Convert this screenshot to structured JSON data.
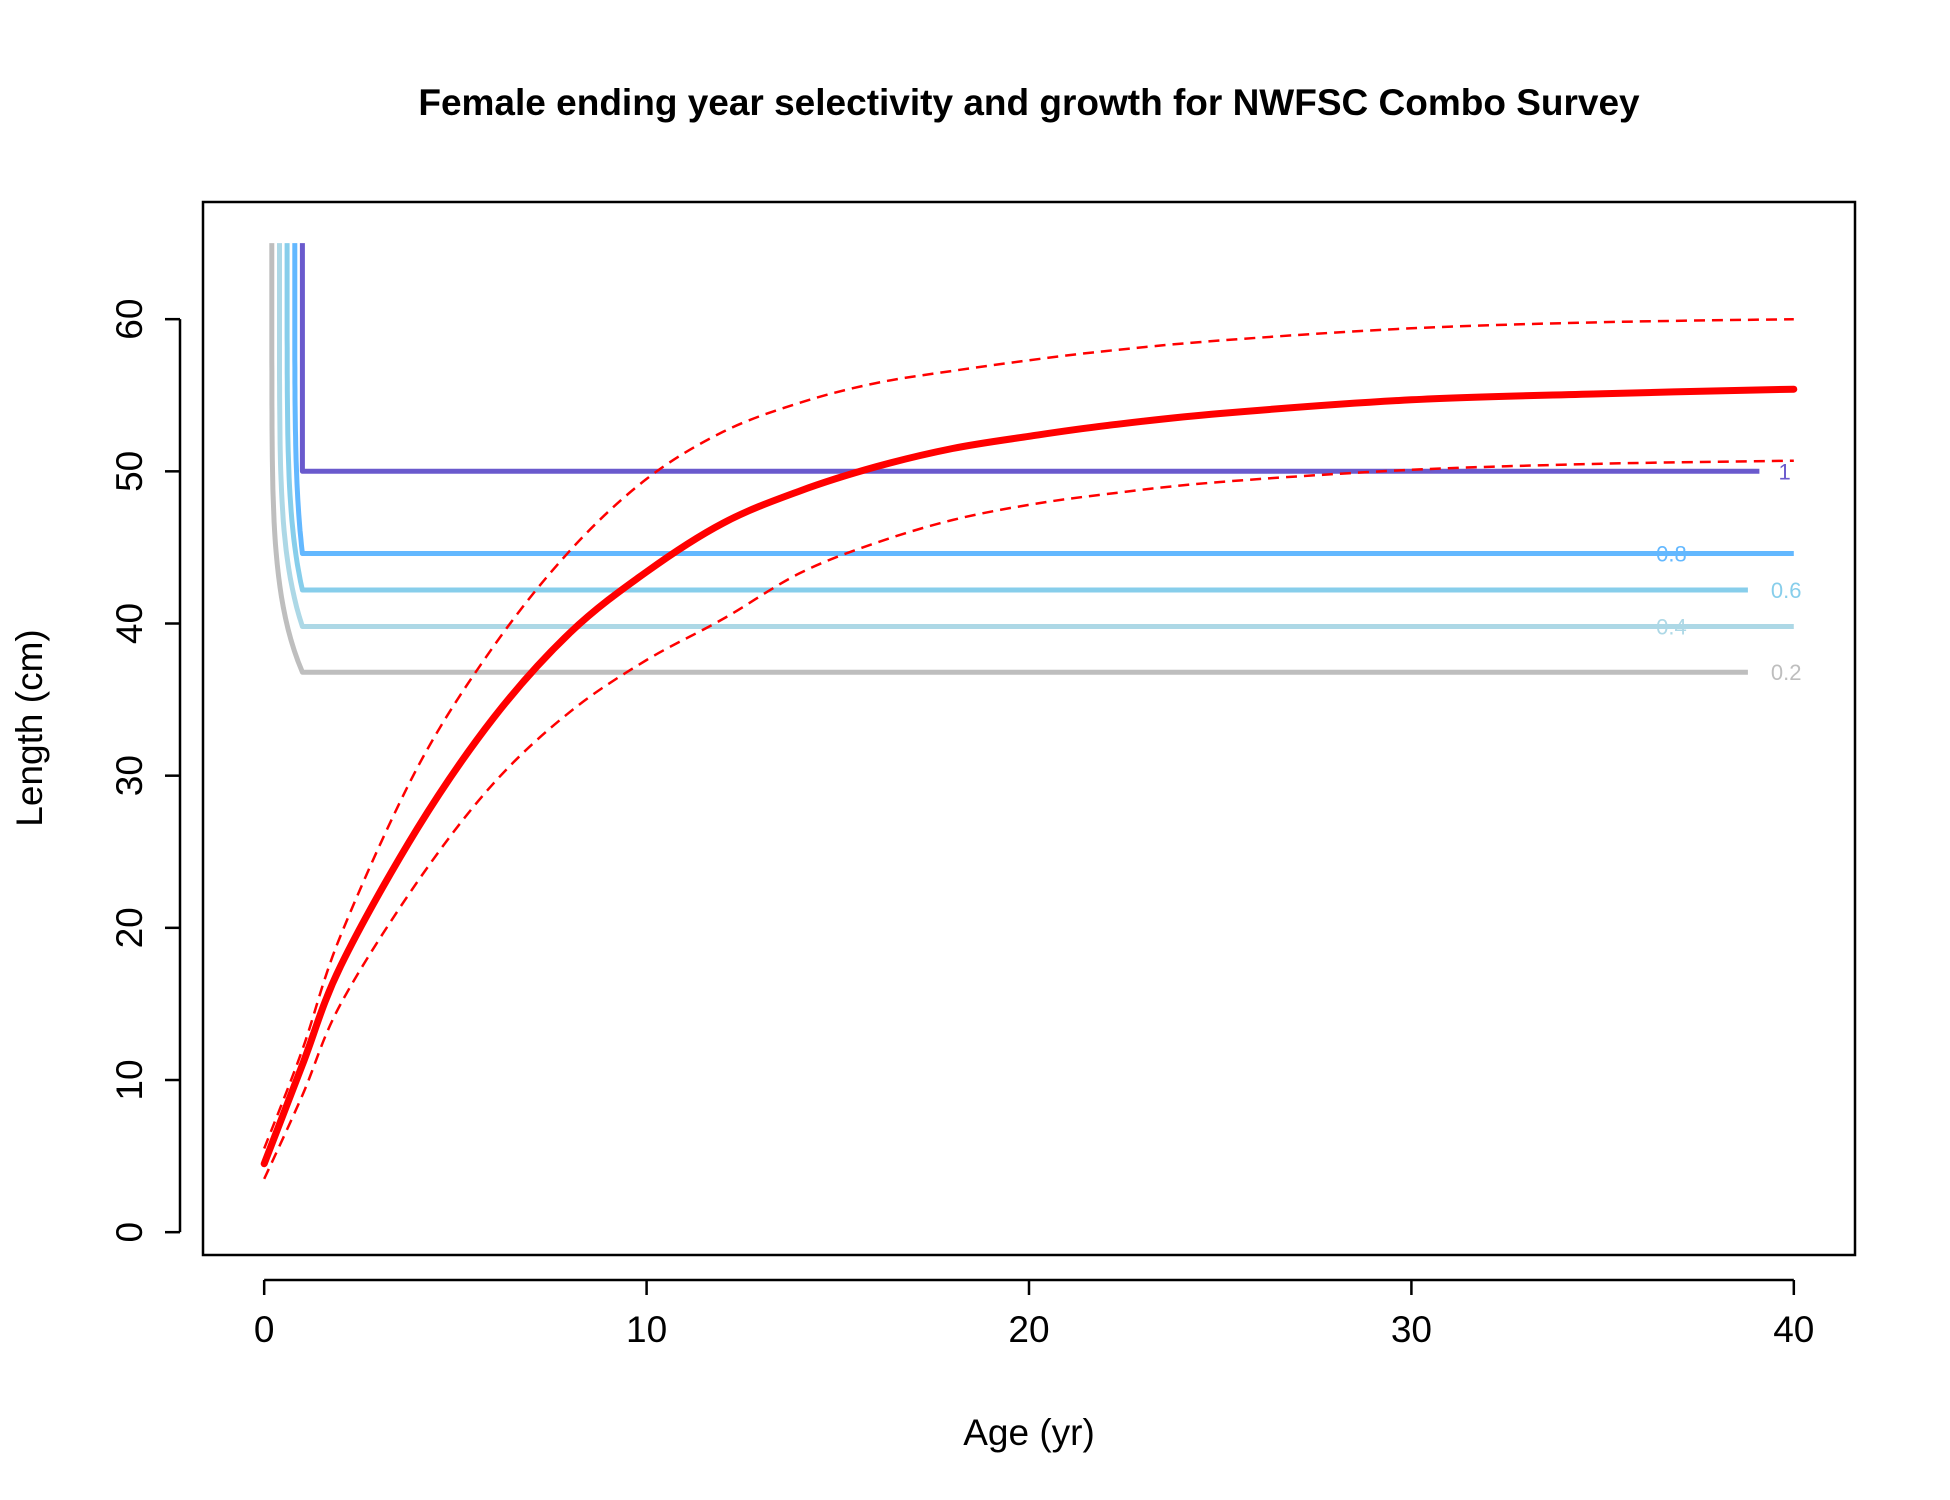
{
  "chart_data": {
    "type": "line",
    "title": "Female ending year selectivity and growth for NWFSC Combo Survey",
    "xlabel": "Age (yr)",
    "ylabel": "Length (cm)",
    "xlim": [
      -1.6,
      41.6
    ],
    "ylim": [
      -1.5,
      67.7
    ],
    "x_ticks": [
      0,
      10,
      20,
      30,
      40
    ],
    "y_ticks": [
      0,
      10,
      20,
      30,
      40,
      50,
      60
    ],
    "grid": false,
    "legend": "none",
    "selectivity_contours": [
      {
        "label": "0.2",
        "color": "#bebebe",
        "x_vertical": 0.2,
        "y_level": 36.8,
        "x_end": 38.8,
        "x_bend": 1.0,
        "label_x": 39.4,
        "label_y": 36.8
      },
      {
        "label": "0.4",
        "color": "#add8e6",
        "x_vertical": 0.4,
        "y_level": 39.8,
        "x_end": 40.0,
        "x_bend": 1.0,
        "label_x": 36.4,
        "label_y": 39.8
      },
      {
        "label": "0.6",
        "color": "#87ceeb",
        "x_vertical": 0.6,
        "y_level": 42.2,
        "x_end": 38.8,
        "x_bend": 1.0,
        "label_x": 39.4,
        "label_y": 42.2
      },
      {
        "label": "0.8",
        "color": "#63b8ff",
        "x_vertical": 0.8,
        "y_level": 44.6,
        "x_end": 40.0,
        "x_bend": 1.0,
        "label_x": 36.4,
        "label_y": 44.6
      },
      {
        "label": "1",
        "color": "#6a5acd",
        "x_vertical": 1.0,
        "y_level": 50.0,
        "x_end": 39.1,
        "x_bend": 1.0,
        "label_x": 39.6,
        "label_y": 50.0
      }
    ],
    "vertical_top": 65.0,
    "series": [
      {
        "role": "mean",
        "color": "#ff0000",
        "style": "solid",
        "x": [
          0,
          1,
          2,
          4,
          6,
          8,
          10,
          12,
          14,
          16,
          18,
          20,
          22,
          25,
          30,
          35,
          40
        ],
        "y": [
          4.5,
          11.0,
          17.5,
          26.5,
          33.8,
          39.4,
          43.4,
          46.6,
          48.7,
          50.3,
          51.5,
          52.3,
          53.0,
          53.8,
          54.7,
          55.1,
          55.4
        ]
      },
      {
        "role": "upper",
        "color": "#ff0000",
        "style": "dashed",
        "x": [
          0,
          1,
          2,
          4,
          6,
          8,
          10,
          12,
          14,
          16,
          18,
          20,
          22,
          25,
          30,
          35,
          40
        ],
        "y": [
          5.5,
          12.0,
          19.5,
          30.5,
          38.5,
          44.8,
          49.5,
          52.6,
          54.5,
          55.8,
          56.6,
          57.3,
          57.9,
          58.6,
          59.4,
          59.8,
          60.0
        ]
      },
      {
        "role": "lower",
        "color": "#ff0000",
        "style": "dashed",
        "x": [
          0,
          1,
          2,
          4,
          6,
          8,
          10,
          12,
          14,
          16,
          18,
          20,
          22,
          25,
          30,
          35,
          40
        ],
        "y": [
          3.5,
          9.0,
          15.0,
          23.0,
          29.5,
          34.2,
          37.6,
          40.3,
          43.3,
          45.3,
          46.8,
          47.8,
          48.5,
          49.3,
          50.1,
          50.5,
          50.7
        ]
      }
    ]
  }
}
